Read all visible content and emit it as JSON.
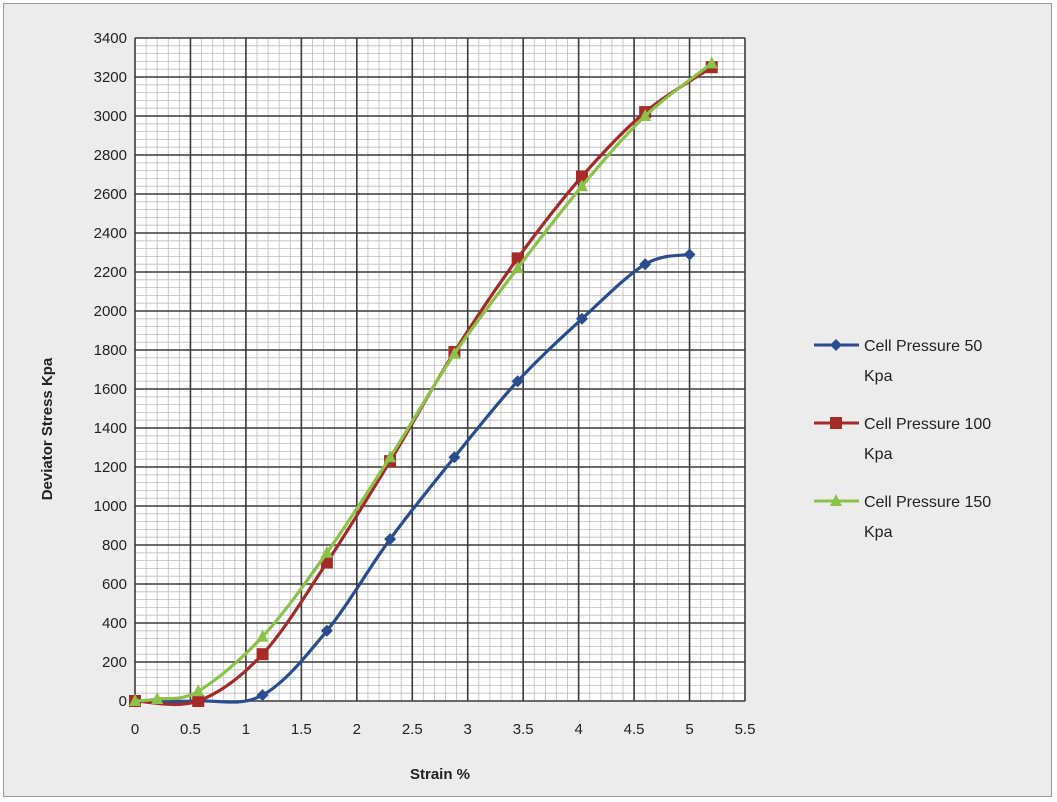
{
  "chart_data": {
    "type": "line",
    "title": "",
    "xlabel": "Strain %",
    "ylabel": "Deviator Stress Kpa",
    "xlim": [
      0,
      5.5
    ],
    "ylim": [
      0,
      3400
    ],
    "xticks": [
      "0",
      "0.5",
      "1",
      "1.5",
      "2",
      "2.5",
      "3",
      "3.5",
      "4",
      "4.5",
      "5",
      "5.5"
    ],
    "yticks": [
      "0",
      "200",
      "400",
      "600",
      "800",
      "1000",
      "1200",
      "1400",
      "1600",
      "1800",
      "2000",
      "2200",
      "2400",
      "2600",
      "2800",
      "3000",
      "3200",
      "3400"
    ],
    "grid": true,
    "legend_position": "right",
    "series": [
      {
        "name": "Cell Pressure 50 Kpa",
        "color": "#2a4d8f",
        "marker": "diamond",
        "points": [
          [
            0,
            0
          ],
          [
            0.57,
            0
          ],
          [
            1.15,
            30
          ],
          [
            1.73,
            360
          ],
          [
            2.3,
            830
          ],
          [
            2.88,
            1250
          ],
          [
            3.45,
            1640
          ],
          [
            4.03,
            1960
          ],
          [
            4.6,
            2240
          ],
          [
            5.0,
            2290
          ]
        ]
      },
      {
        "name": "Cell Pressure 100 Kpa",
        "color": "#a52a2a",
        "marker": "square",
        "points": [
          [
            0,
            0
          ],
          [
            0.57,
            0
          ],
          [
            1.15,
            240
          ],
          [
            1.73,
            710
          ],
          [
            2.3,
            1230
          ],
          [
            2.88,
            1790
          ],
          [
            3.45,
            2270
          ],
          [
            4.03,
            2690
          ],
          [
            4.6,
            3020
          ],
          [
            5.2,
            3250
          ]
        ]
      },
      {
        "name": "Cell Pressure 150 Kpa",
        "color": "#8bc34a",
        "marker": "triangle",
        "points": [
          [
            0,
            0
          ],
          [
            0.2,
            10
          ],
          [
            0.57,
            50
          ],
          [
            1.15,
            330
          ],
          [
            1.73,
            760
          ],
          [
            2.3,
            1250
          ],
          [
            2.88,
            1780
          ],
          [
            3.45,
            2220
          ],
          [
            4.03,
            2640
          ],
          [
            4.6,
            3000
          ],
          [
            5.2,
            3270
          ]
        ]
      }
    ],
    "legend_items": [
      {
        "line1": "Cell Pressure 50",
        "line2": "Kpa"
      },
      {
        "line1": "Cell Pressure 100",
        "line2": "Kpa"
      },
      {
        "line1": "Cell Pressure 150",
        "line2": "Kpa"
      }
    ]
  }
}
